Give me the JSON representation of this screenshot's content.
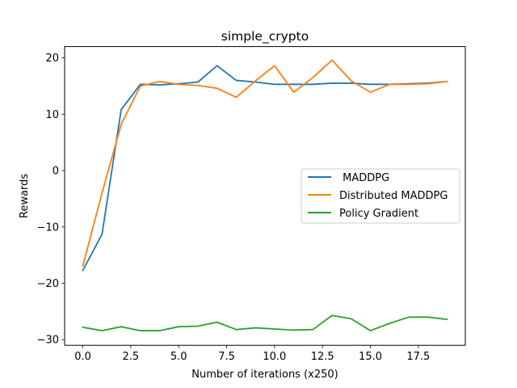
{
  "chart_data": {
    "type": "line",
    "title": "simple_crypto",
    "xlabel": "Number of iterations (x250)",
    "ylabel": "Rewards",
    "xlim": [
      -0.95,
      19.95
    ],
    "ylim": [
      -31,
      22
    ],
    "x_ticks": [
      0.0,
      2.5,
      5.0,
      7.5,
      10.0,
      12.5,
      15.0,
      17.5
    ],
    "x_tick_labels": [
      "0.0",
      "2.5",
      "5.0",
      "7.5",
      "10.0",
      "12.5",
      "15.0",
      "17.5"
    ],
    "y_ticks": [
      -30,
      -20,
      -10,
      0,
      10,
      20
    ],
    "y_tick_labels": [
      "−30",
      "−20",
      "−10",
      "0",
      "10",
      "20"
    ],
    "grid": false,
    "legend_position": "center-right",
    "x": [
      0,
      1,
      2,
      3,
      4,
      5,
      6,
      7,
      8,
      9,
      10,
      11,
      12,
      13,
      14,
      15,
      16,
      17,
      18,
      19
    ],
    "series": [
      {
        "name": " MADDPG",
        "color": "#1f77b4",
        "values": [
          -17.7,
          -11.3,
          10.8,
          15.3,
          15.2,
          15.4,
          15.7,
          18.6,
          16.0,
          15.7,
          15.3,
          15.3,
          15.3,
          15.5,
          15.5,
          15.3,
          15.3,
          15.4,
          15.5,
          15.8
        ]
      },
      {
        "name": "Distributed MADDPG",
        "color": "#ff7f0e",
        "values": [
          -16.9,
          -4.0,
          8.2,
          15.0,
          15.8,
          15.3,
          15.1,
          14.6,
          13.0,
          15.9,
          18.6,
          13.9,
          16.5,
          19.6,
          15.9,
          13.9,
          15.3,
          15.3,
          15.4,
          15.8
        ]
      },
      {
        "name": "Policy Gradient",
        "color": "#2ca02c",
        "values": [
          -27.8,
          -28.4,
          -27.7,
          -28.4,
          -28.4,
          -27.7,
          -27.6,
          -26.9,
          -28.2,
          -27.9,
          -28.1,
          -28.3,
          -28.2,
          -25.7,
          -26.3,
          -28.4,
          -27.1,
          -26.0,
          -26.0,
          -26.4
        ]
      }
    ]
  }
}
